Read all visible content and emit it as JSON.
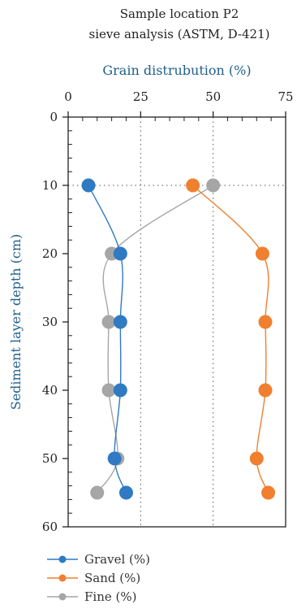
{
  "chart_data": {
    "type": "line",
    "title_line1": "Sample location P2",
    "title_line2": "sieve analysis (ASTM, D-421)",
    "xlabel": "Grain distrubution (%)",
    "ylabel": "Sediment layer depth (cm)",
    "x_axis_position": "top",
    "y_inverted": true,
    "xlim": [
      0,
      75
    ],
    "ylim": [
      0,
      60
    ],
    "x_ticks": [
      "0",
      "25",
      "50",
      "75"
    ],
    "y_ticks": [
      "0",
      "10",
      "20",
      "30",
      "40",
      "50",
      "60"
    ],
    "grid": "dotted vertical at 25 and 50, dotted horizontal at 10",
    "legend_position": "bottom",
    "series": [
      {
        "name": "Gravel (%)",
        "color": "#2f7ac3",
        "points": [
          [
            7,
            10
          ],
          [
            18,
            20
          ],
          [
            18,
            30
          ],
          [
            18,
            40
          ],
          [
            16,
            50
          ],
          [
            20,
            55
          ]
        ]
      },
      {
        "name": "Sand (%)",
        "color": "#f07f2f",
        "points": [
          [
            43,
            10
          ],
          [
            67,
            20
          ],
          [
            68,
            30
          ],
          [
            68,
            40
          ],
          [
            65,
            50
          ],
          [
            69,
            55
          ]
        ]
      },
      {
        "name": "Fine (%)",
        "color": "#a6a6a6",
        "points": [
          [
            50,
            10
          ],
          [
            15,
            20
          ],
          [
            14,
            30
          ],
          [
            14,
            40
          ],
          [
            17,
            50
          ],
          [
            10,
            55
          ]
        ]
      }
    ]
  }
}
